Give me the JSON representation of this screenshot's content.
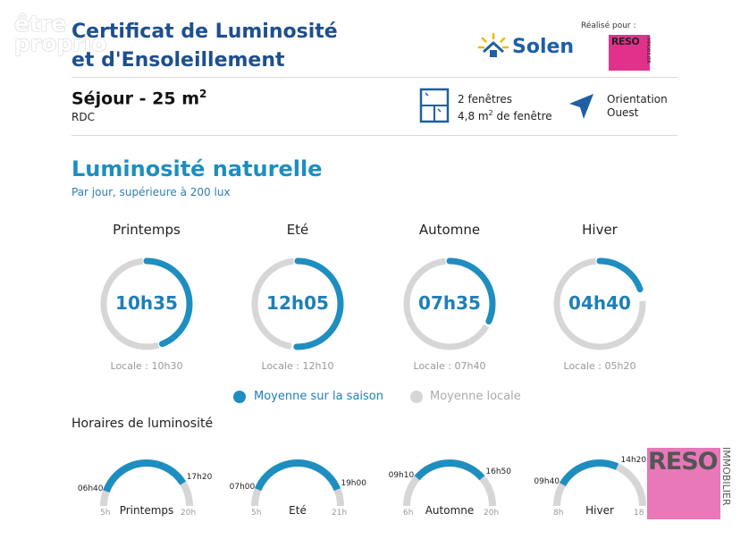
{
  "watermark": {
    "line1": "être",
    "line2": "proprio"
  },
  "header": {
    "title": "Certificat de Luminosité et d'Ensoleillement",
    "brand": "Solen",
    "realise_label": "Réalisé pour :",
    "partner_logo": "RESO",
    "partner_logo_sub": "IMMOBILIER"
  },
  "room": {
    "name": "Séjour - 25 m",
    "name_sup": "2",
    "level": "RDC",
    "windows_line1": "2 fenêtres",
    "windows_line2_a": "4,8 m",
    "windows_line2_sup": "2",
    "windows_line2_b": " de fenêtre",
    "orientation_label": "Orientation",
    "orientation_value": "Ouest"
  },
  "luminosite": {
    "heading": "Luminosité naturelle",
    "subtitle": "Par jour, supérieure à 200 lux",
    "seasons": [
      {
        "name": "Printemps",
        "value": "10h35",
        "local": "Locale : 10h30",
        "fraction": 0.44,
        "local_fraction": 0.4375
      },
      {
        "name": "Eté",
        "value": "12h05",
        "local": "Locale : 12h10",
        "fraction": 0.503,
        "local_fraction": 0.507
      },
      {
        "name": "Automne",
        "value": "07h35",
        "local": "Locale : 07h40",
        "fraction": 0.316,
        "local_fraction": 0.319
      },
      {
        "name": "Hiver",
        "value": "04h40",
        "local": "Locale : 05h20",
        "fraction": 0.194,
        "local_fraction": 0.222
      }
    ],
    "legend_season": "Moyenne sur la saison",
    "legend_local": "Moyenne locale",
    "color_season": "#1e8ec0",
    "color_local": "#d6d6d6"
  },
  "horaires": {
    "heading": "Horaires de luminosité",
    "items": [
      {
        "name": "Printemps",
        "start": "06h40",
        "end": "17h20",
        "min": "5h",
        "max": "20h"
      },
      {
        "name": "Eté",
        "start": "07h00",
        "end": "19h00",
        "min": "5h",
        "max": "21h"
      },
      {
        "name": "Automne",
        "start": "09h10",
        "end": "16h50",
        "min": "6h",
        "max": "20h"
      },
      {
        "name": "Hiver",
        "start": "09h40",
        "end": "14h20",
        "min": "8h",
        "max": "18"
      }
    ]
  },
  "stamp": {
    "label": "RESO",
    "side": "IMMOBILIER"
  }
}
